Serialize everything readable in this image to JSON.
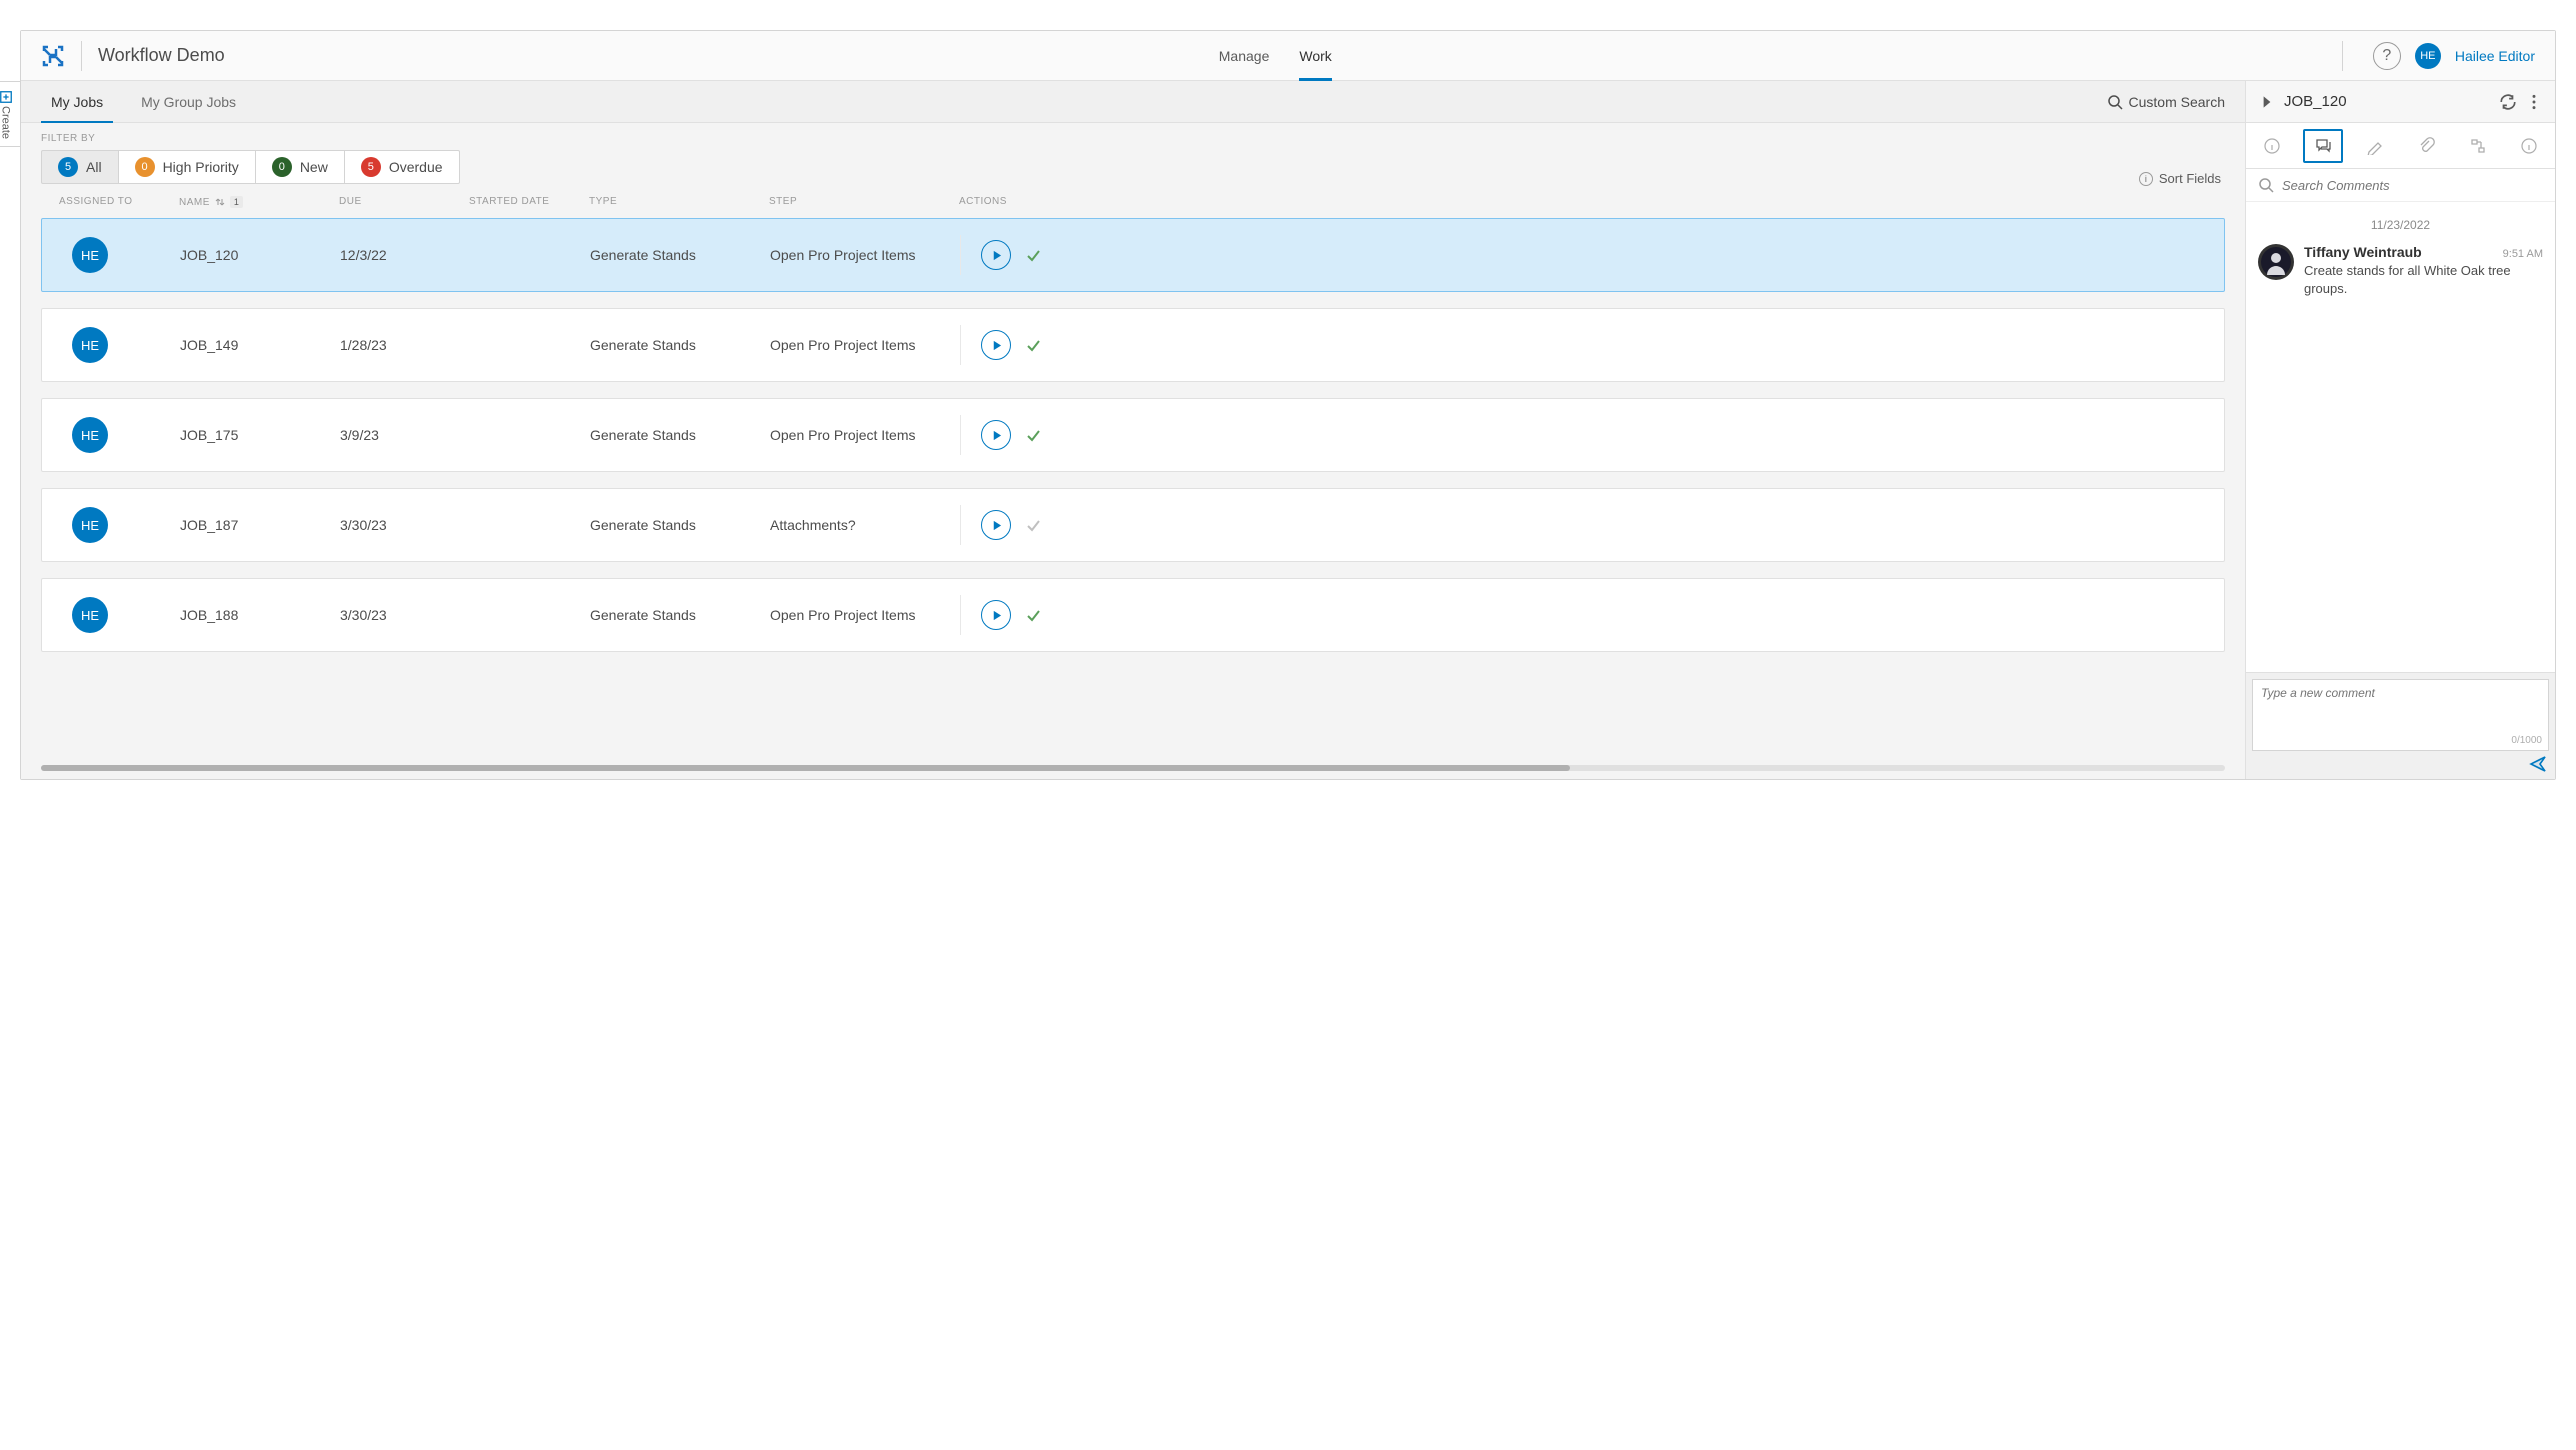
{
  "header": {
    "app_title": "Workflow Demo",
    "nav_tabs": [
      {
        "label": "Manage",
        "active": false
      },
      {
        "label": "Work",
        "active": true
      }
    ],
    "user": {
      "initials": "HE",
      "name": "Hailee Editor"
    }
  },
  "create_tab": {
    "label": "Create"
  },
  "sub_tabs": [
    {
      "label": "My Jobs",
      "active": true
    },
    {
      "label": "My Group Jobs",
      "active": false
    }
  ],
  "custom_search_label": "Custom Search",
  "filter": {
    "label": "FILTER BY",
    "items": [
      {
        "count": "5",
        "color": "#0079c1",
        "label": "All",
        "active": true
      },
      {
        "count": "0",
        "color": "#e8912e",
        "label": "High Priority",
        "active": false
      },
      {
        "count": "0",
        "color": "#2b622b",
        "label": "New",
        "active": false
      },
      {
        "count": "5",
        "color": "#d83a2f",
        "label": "Overdue",
        "active": false
      }
    ]
  },
  "sort_fields_label": "Sort Fields",
  "columns": {
    "assigned_to": "ASSIGNED TO",
    "name": "NAME",
    "name_sort_index": "1",
    "due": "DUE",
    "started_date": "STARTED DATE",
    "type": "TYPE",
    "step": "STEP",
    "actions": "ACTIONS"
  },
  "jobs": [
    {
      "initials": "HE",
      "name": "JOB_120",
      "due": "12/3/22",
      "started": "",
      "type": "Generate Stands",
      "step": "Open Pro Project Items",
      "check_muted": false,
      "selected": true
    },
    {
      "initials": "HE",
      "name": "JOB_149",
      "due": "1/28/23",
      "started": "",
      "type": "Generate Stands",
      "step": "Open Pro Project Items",
      "check_muted": false,
      "selected": false
    },
    {
      "initials": "HE",
      "name": "JOB_175",
      "due": "3/9/23",
      "started": "",
      "type": "Generate Stands",
      "step": "Open Pro Project Items",
      "check_muted": false,
      "selected": false
    },
    {
      "initials": "HE",
      "name": "JOB_187",
      "due": "3/30/23",
      "started": "",
      "type": "Generate Stands",
      "step": "Attachments?",
      "check_muted": true,
      "selected": false
    },
    {
      "initials": "HE",
      "name": "JOB_188",
      "due": "3/30/23",
      "started": "",
      "type": "Generate Stands",
      "step": "Open Pro Project Items",
      "check_muted": false,
      "selected": false
    }
  ],
  "side_panel": {
    "title": "JOB_120",
    "search_placeholder": "Search Comments",
    "date_separator": "11/23/2022",
    "comments": [
      {
        "author": "Tiffany Weintraub",
        "time": "9:51 AM",
        "text": "Create stands for all White Oak tree groups."
      }
    ],
    "new_comment_placeholder": "Type a new comment",
    "char_counter": "0/1000"
  },
  "colors": {
    "primary": "#0079c1",
    "selected_row_bg": "#d6ecfa",
    "selected_row_border": "#7fc3f0"
  }
}
